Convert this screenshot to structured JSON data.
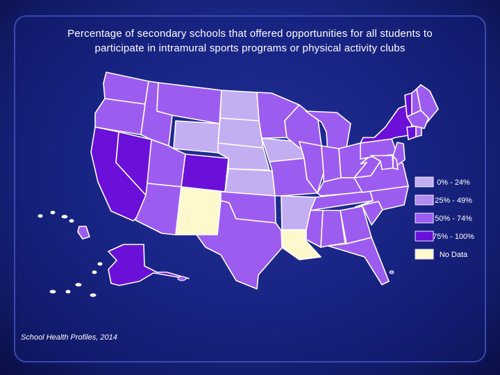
{
  "title": {
    "line1": "Percentage of secondary schools that offered opportunities for all students to",
    "line2": "participate in intramural sports programs or physical activity clubs"
  },
  "legend": [
    {
      "label": "0% - 24%",
      "color": "#c4aef2"
    },
    {
      "label": "25% - 49%",
      "color": "#b68af0"
    },
    {
      "label": "50% - 74%",
      "color": "#9d5cf0"
    },
    {
      "label": "75% - 100%",
      "color": "#6a10d8"
    },
    {
      "label": "No Data",
      "color": "#fff8cc"
    }
  ],
  "source": "School Health Profiles, 2014",
  "colors": {
    "background": "#1c2a8c",
    "border": "#ffffff"
  },
  "map_data": {
    "type": "choropleth",
    "region": "United States",
    "states": [
      {
        "name": "WA",
        "class": "50% - 74%"
      },
      {
        "name": "OR",
        "class": "50% - 74%"
      },
      {
        "name": "CA",
        "class": "75% - 100%"
      },
      {
        "name": "NV",
        "class": "75% - 100%"
      },
      {
        "name": "ID",
        "class": "50% - 74%"
      },
      {
        "name": "MT",
        "class": "50% - 74%"
      },
      {
        "name": "WY",
        "class": "0% - 24%"
      },
      {
        "name": "UT",
        "class": "50% - 74%"
      },
      {
        "name": "AZ",
        "class": "50% - 74%"
      },
      {
        "name": "CO",
        "class": "75% - 100%"
      },
      {
        "name": "NM",
        "class": "No Data"
      },
      {
        "name": "ND",
        "class": "0% - 24%"
      },
      {
        "name": "SD",
        "class": "0% - 24%"
      },
      {
        "name": "NE",
        "class": "0% - 24%"
      },
      {
        "name": "KS",
        "class": "0% - 24%"
      },
      {
        "name": "OK",
        "class": "50% - 74%"
      },
      {
        "name": "TX",
        "class": "50% - 74%"
      },
      {
        "name": "MN",
        "class": "50% - 74%"
      },
      {
        "name": "IA",
        "class": "0% - 24%"
      },
      {
        "name": "MO",
        "class": "50% - 74%"
      },
      {
        "name": "AR",
        "class": "0% - 24%"
      },
      {
        "name": "LA",
        "class": "No Data"
      },
      {
        "name": "WI",
        "class": "50% - 74%"
      },
      {
        "name": "IL",
        "class": "50% - 74%"
      },
      {
        "name": "MI",
        "class": "50% - 74%"
      },
      {
        "name": "IN",
        "class": "50% - 74%"
      },
      {
        "name": "OH",
        "class": "50% - 74%"
      },
      {
        "name": "KY",
        "class": "50% - 74%"
      },
      {
        "name": "TN",
        "class": "50% - 74%"
      },
      {
        "name": "MS",
        "class": "50% - 74%"
      },
      {
        "name": "AL",
        "class": "50% - 74%"
      },
      {
        "name": "GA",
        "class": "50% - 74%"
      },
      {
        "name": "FL",
        "class": "50% - 74%"
      },
      {
        "name": "SC",
        "class": "50% - 74%"
      },
      {
        "name": "NC",
        "class": "50% - 74%"
      },
      {
        "name": "VA",
        "class": "50% - 74%"
      },
      {
        "name": "WV",
        "class": "50% - 74%"
      },
      {
        "name": "PA",
        "class": "50% - 74%"
      },
      {
        "name": "NY",
        "class": "75% - 100%"
      },
      {
        "name": "VT",
        "class": "75% - 100%"
      },
      {
        "name": "NH",
        "class": "50% - 74%"
      },
      {
        "name": "ME",
        "class": "50% - 74%"
      },
      {
        "name": "MA",
        "class": "50% - 74%"
      },
      {
        "name": "CT",
        "class": "75% - 100%"
      },
      {
        "name": "RI",
        "class": "50% - 74%"
      },
      {
        "name": "NJ",
        "class": "50% - 74%"
      },
      {
        "name": "DE",
        "class": "50% - 74%"
      },
      {
        "name": "MD",
        "class": "50% - 74%"
      },
      {
        "name": "AK",
        "class": "75% - 100%"
      },
      {
        "name": "HI",
        "class": "50% - 74%"
      }
    ]
  }
}
